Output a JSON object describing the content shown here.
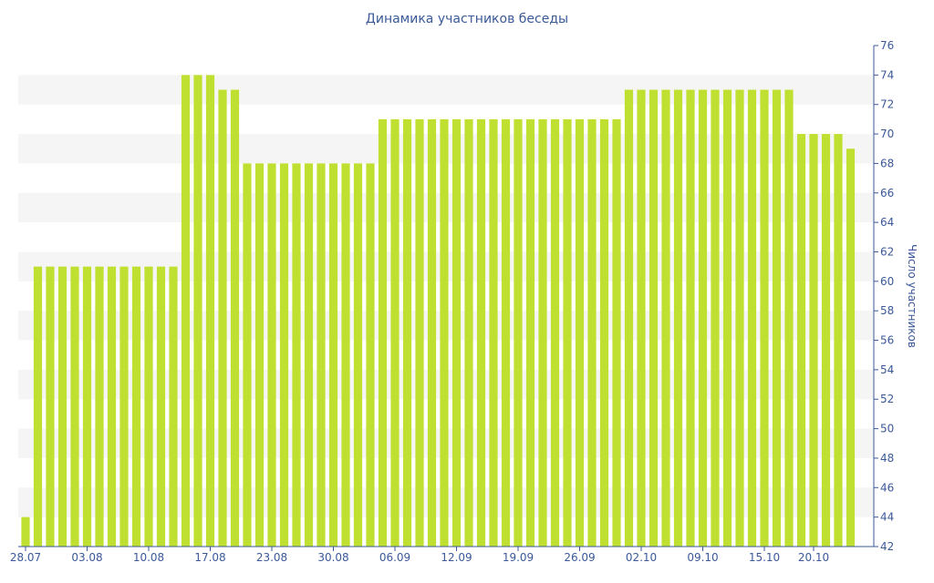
{
  "chart_data": {
    "type": "bar",
    "title": "Динамика участников беседы",
    "xlabel": "",
    "ylabel": "Число участников",
    "ylim": [
      42,
      76
    ],
    "y_ticks": [
      42,
      44,
      46,
      48,
      50,
      52,
      54,
      56,
      58,
      60,
      62,
      64,
      66,
      68,
      70,
      72,
      74,
      76
    ],
    "y_axis_side": "right",
    "x_tick_labels": [
      "28.07",
      "03.08",
      "10.08",
      "17.08",
      "23.08",
      "30.08",
      "06.09",
      "12.09",
      "19.09",
      "26.09",
      "02.10",
      "09.10",
      "15.10",
      "20.10"
    ],
    "x_tick_indices": [
      0,
      5,
      10,
      15,
      20,
      25,
      30,
      35,
      40,
      45,
      50,
      55,
      60,
      64
    ],
    "values": [
      44,
      61,
      61,
      61,
      61,
      61,
      61,
      61,
      61,
      61,
      61,
      61,
      61,
      74,
      74,
      74,
      73,
      73,
      68,
      68,
      68,
      68,
      68,
      68,
      68,
      68,
      68,
      68,
      68,
      71,
      71,
      71,
      71,
      71,
      71,
      71,
      71,
      71,
      71,
      71,
      71,
      71,
      71,
      71,
      71,
      71,
      71,
      71,
      71,
      73,
      73,
      73,
      73,
      73,
      73,
      73,
      73,
      73,
      73,
      73,
      73,
      73,
      73,
      70,
      70,
      70,
      70,
      69
    ],
    "bar_color": "#bfe030",
    "band_color": "#f5f5f5",
    "axis_color": "#3b5998",
    "grid": "alternating bands",
    "legend": "none"
  }
}
